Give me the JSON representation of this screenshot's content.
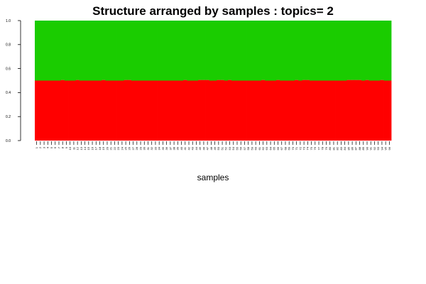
{
  "chart_data": {
    "type": "bar",
    "stacked": true,
    "title": "Structure arranged by samples : topics= 2",
    "xlabel": "samples",
    "ylabel": "",
    "ylim": [
      0,
      1
    ],
    "yticks": [
      "0.0",
      "0.2",
      "0.4",
      "0.6",
      "0.8",
      "1.0"
    ],
    "categories": [
      "1",
      "2",
      "3",
      "4",
      "5",
      "6",
      "7",
      "8",
      "9",
      "10",
      "11",
      "12",
      "13",
      "14",
      "15",
      "16",
      "17",
      "18",
      "19",
      "20",
      "21",
      "22",
      "23",
      "24",
      "25",
      "26",
      "27",
      "28",
      "29",
      "30",
      "31",
      "32",
      "33",
      "34",
      "35",
      "36",
      "37",
      "38",
      "39",
      "40",
      "41",
      "42",
      "43",
      "44",
      "45",
      "46",
      "47",
      "48",
      "49",
      "50",
      "51",
      "52",
      "53",
      "54",
      "55",
      "56",
      "57",
      "58",
      "59",
      "60",
      "61",
      "62",
      "63",
      "64",
      "65",
      "66",
      "67",
      "68",
      "69",
      "70",
      "71",
      "72",
      "73",
      "74",
      "75",
      "76",
      "77",
      "78",
      "79",
      "80",
      "81",
      "82",
      "83",
      "84",
      "85",
      "86",
      "87",
      "88",
      "89",
      "90",
      "91",
      "92",
      "93",
      "94",
      "95",
      "96"
    ],
    "series": [
      {
        "color": "#ff0000",
        "values": [
          0.5,
          0.5,
          0.5,
          0.5,
          0.5,
          0.5,
          0.5,
          0.505,
          0.5,
          0.5,
          0.5,
          0.505,
          0.5,
          0.5,
          0.5,
          0.5,
          0.5,
          0.5,
          0.505,
          0.5,
          0.5,
          0.5,
          0.5,
          0.5,
          0.505,
          0.505,
          0.5,
          0.5,
          0.5,
          0.5,
          0.5,
          0.5,
          0.5,
          0.5,
          0.5,
          0.5,
          0.5,
          0.5,
          0.5,
          0.5,
          0.505,
          0.5,
          0.5,
          0.5,
          0.505,
          0.505,
          0.505,
          0.5,
          0.5,
          0.505,
          0.505,
          0.5,
          0.505,
          0.5,
          0.5,
          0.5,
          0.5,
          0.5,
          0.5,
          0.5,
          0.5,
          0.505,
          0.5,
          0.5,
          0.5,
          0.505,
          0.5,
          0.5,
          0.5,
          0.5,
          0.505,
          0.5,
          0.505,
          0.505,
          0.5,
          0.5,
          0.5,
          0.5,
          0.5,
          0.5,
          0.5,
          0.5,
          0.5,
          0.5,
          0.505,
          0.505,
          0.505,
          0.505,
          0.5,
          0.505,
          0.5,
          0.5,
          0.5,
          0.505,
          0.5,
          0.5
        ]
      },
      {
        "color": "#1acc00",
        "values": [
          0.5,
          0.5,
          0.5,
          0.5,
          0.5,
          0.5,
          0.5,
          0.495,
          0.5,
          0.5,
          0.5,
          0.495,
          0.5,
          0.5,
          0.5,
          0.5,
          0.5,
          0.5,
          0.495,
          0.5,
          0.5,
          0.5,
          0.5,
          0.5,
          0.495,
          0.495,
          0.5,
          0.5,
          0.5,
          0.5,
          0.5,
          0.5,
          0.5,
          0.5,
          0.5,
          0.5,
          0.5,
          0.5,
          0.5,
          0.5,
          0.495,
          0.5,
          0.5,
          0.5,
          0.495,
          0.495,
          0.495,
          0.5,
          0.5,
          0.495,
          0.495,
          0.5,
          0.495,
          0.5,
          0.5,
          0.5,
          0.5,
          0.5,
          0.5,
          0.5,
          0.5,
          0.495,
          0.5,
          0.5,
          0.5,
          0.495,
          0.5,
          0.5,
          0.5,
          0.5,
          0.495,
          0.5,
          0.495,
          0.495,
          0.5,
          0.5,
          0.5,
          0.5,
          0.5,
          0.5,
          0.5,
          0.5,
          0.5,
          0.5,
          0.495,
          0.495,
          0.495,
          0.495,
          0.5,
          0.495,
          0.5,
          0.5,
          0.5,
          0.495,
          0.5,
          0.5
        ]
      }
    ],
    "grid": false,
    "legend": "none"
  }
}
